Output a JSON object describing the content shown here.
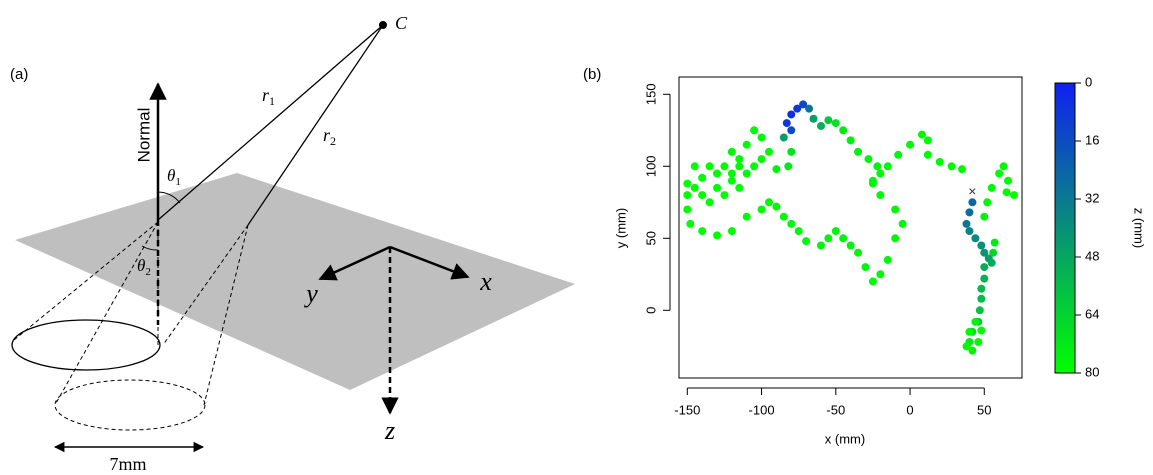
{
  "diagram": {
    "panel_label": "(a)",
    "source": "C",
    "normal": "Normal",
    "r1": {
      "base": "r",
      "sub": "1"
    },
    "r2": {
      "base": "r",
      "sub": "2"
    },
    "theta1": {
      "base": "θ",
      "sub": "1"
    },
    "theta2": {
      "base": "θ",
      "sub": "2"
    },
    "axis_x": "x",
    "axis_y": "y",
    "axis_z": "z",
    "width": "7mm"
  },
  "chart_data": {
    "type": "scatter",
    "panel_label": "(b)",
    "xlabel": "x (mm)",
    "ylabel": "y (mm)",
    "x": [
      42,
      40,
      38,
      40,
      44,
      48,
      50,
      53,
      55,
      56,
      57,
      50,
      50,
      48,
      48,
      47,
      46,
      42,
      40,
      42,
      46,
      48,
      44,
      40,
      38,
      50,
      52,
      55,
      60,
      63,
      66,
      70,
      65,
      35,
      28,
      20,
      12,
      12,
      8,
      0,
      -8,
      -15,
      -20,
      -25,
      -22,
      -28,
      -35,
      -40,
      -45,
      -50,
      -55,
      -60,
      -65,
      -68,
      -72,
      -76,
      -80,
      -83,
      -80,
      -85,
      -80,
      -82,
      -90,
      -95,
      -100,
      -105,
      -110,
      -115,
      -120,
      -125,
      -130,
      -135,
      -140,
      -145,
      -150,
      -150,
      -148,
      -140,
      -130,
      -120,
      -110,
      -100,
      -95,
      -90,
      -85,
      -80,
      -75,
      -70,
      -60,
      -55,
      -50,
      -45,
      -40,
      -35,
      -30,
      -25,
      -20,
      -15,
      -10,
      -5,
      -10,
      -20,
      -25,
      -120,
      -115,
      -125,
      -130,
      -135,
      -140,
      -110,
      -105,
      -100,
      -115,
      -120,
      -150,
      -145
    ],
    "y": [
      75,
      68,
      60,
      55,
      50,
      45,
      40,
      36,
      33,
      40,
      47,
      30,
      22,
      15,
      8,
      0,
      -8,
      -15,
      -22,
      -28,
      -22,
      -14,
      -8,
      -15,
      -25,
      65,
      75,
      85,
      95,
      100,
      90,
      80,
      82,
      98,
      100,
      103,
      108,
      118,
      122,
      115,
      108,
      100,
      95,
      90,
      100,
      105,
      110,
      118,
      125,
      130,
      132,
      128,
      133,
      140,
      143,
      140,
      136,
      130,
      125,
      120,
      110,
      100,
      98,
      110,
      120,
      125,
      115,
      105,
      110,
      100,
      95,
      100,
      92,
      85,
      80,
      70,
      60,
      55,
      52,
      55,
      65,
      70,
      75,
      72,
      65,
      60,
      55,
      48,
      45,
      50,
      55,
      50,
      45,
      40,
      30,
      20,
      25,
      35,
      50,
      60,
      70,
      80,
      88,
      90,
      85,
      80,
      85,
      75,
      80,
      95,
      100,
      105,
      100,
      95,
      88,
      100
    ],
    "z": [
      25,
      28,
      32,
      35,
      38,
      40,
      42,
      45,
      50,
      65,
      72,
      50,
      52,
      55,
      56,
      58,
      60,
      66,
      72,
      76,
      78,
      78,
      76,
      78,
      79,
      75,
      76,
      77,
      78,
      78,
      79,
      80,
      79,
      78,
      78,
      78,
      78,
      78,
      77,
      77,
      77,
      77,
      77,
      76,
      76,
      76,
      75,
      74,
      72,
      70,
      60,
      52,
      45,
      30,
      15,
      8,
      5,
      8,
      15,
      45,
      70,
      72,
      75,
      78,
      78,
      78,
      78,
      78,
      78,
      79,
      79,
      79,
      79,
      79,
      79,
      80,
      80,
      80,
      80,
      80,
      79,
      79,
      78,
      78,
      78,
      78,
      77,
      77,
      77,
      76,
      76,
      76,
      76,
      76,
      76,
      77,
      77,
      77,
      77,
      77,
      78,
      78,
      78,
      79,
      79,
      79,
      79,
      79,
      79,
      78,
      78,
      78,
      78,
      79,
      80,
      80
    ],
    "xlim": [
      -155.6,
      75.4
    ],
    "ylim": [
      -47,
      162
    ],
    "xticks": [
      -150,
      -100,
      -50,
      0,
      50
    ],
    "yticks": [
      0,
      50,
      100,
      150
    ],
    "marker": {
      "label": "×",
      "x": 42,
      "y": 82
    },
    "colorbar": {
      "label": "z (mm)",
      "lim": [
        0,
        80
      ],
      "ticks": [
        0,
        16,
        32,
        48,
        64,
        80
      ],
      "colors": [
        "#1020f0",
        "#00ff00"
      ]
    }
  }
}
